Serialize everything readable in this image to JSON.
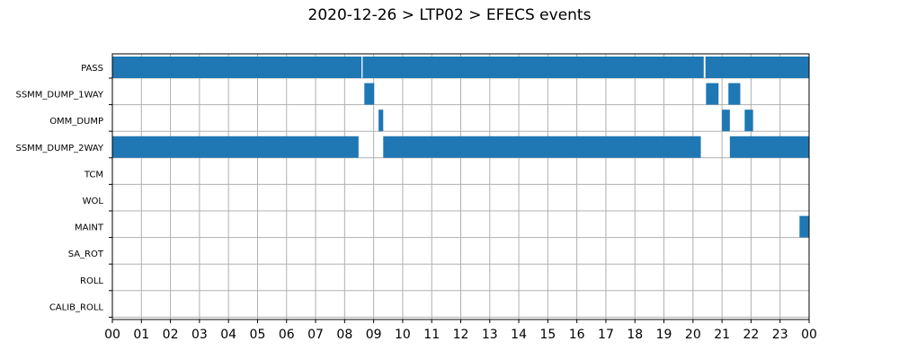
{
  "chart_data": {
    "type": "bar",
    "orientation": "horizontal",
    "title": "2020-12-26 > LTP02 > EFECS events",
    "xlabel": "",
    "ylabel": "",
    "xlim": [
      0,
      24
    ],
    "grid": true,
    "legend": "none",
    "color": "#1f77b4",
    "x_ticks": [
      "00",
      "01",
      "02",
      "03",
      "04",
      "05",
      "06",
      "07",
      "08",
      "09",
      "10",
      "11",
      "12",
      "13",
      "14",
      "15",
      "16",
      "17",
      "18",
      "19",
      "20",
      "21",
      "22",
      "23",
      "00"
    ],
    "categories": [
      "PASS",
      "SSMM_DUMP_1WAY",
      "OMM_DUMP",
      "SSMM_DUMP_2WAY",
      "TCM",
      "WOL",
      "MAINT",
      "SA_ROT",
      "ROLL",
      "CALIB_ROLL"
    ],
    "series": [
      {
        "category": "PASS",
        "intervals": [
          [
            0.0,
            8.58
          ],
          [
            8.62,
            20.37
          ],
          [
            20.43,
            24.0
          ]
        ]
      },
      {
        "category": "SSMM_DUMP_1WAY",
        "intervals": [
          [
            8.68,
            9.02
          ],
          [
            20.45,
            20.88
          ],
          [
            21.22,
            21.63
          ]
        ]
      },
      {
        "category": "OMM_DUMP",
        "intervals": [
          [
            9.17,
            9.33
          ],
          [
            21.0,
            21.27
          ],
          [
            21.78,
            22.07
          ]
        ]
      },
      {
        "category": "SSMM_DUMP_2WAY",
        "intervals": [
          [
            0.0,
            8.48
          ],
          [
            9.33,
            20.27
          ],
          [
            21.27,
            24.0
          ]
        ]
      },
      {
        "category": "TCM",
        "intervals": []
      },
      {
        "category": "WOL",
        "intervals": []
      },
      {
        "category": "MAINT",
        "intervals": [
          [
            23.67,
            24.0
          ]
        ]
      },
      {
        "category": "SA_ROT",
        "intervals": []
      },
      {
        "category": "ROLL",
        "intervals": []
      },
      {
        "category": "CALIB_ROLL",
        "intervals": []
      }
    ]
  }
}
